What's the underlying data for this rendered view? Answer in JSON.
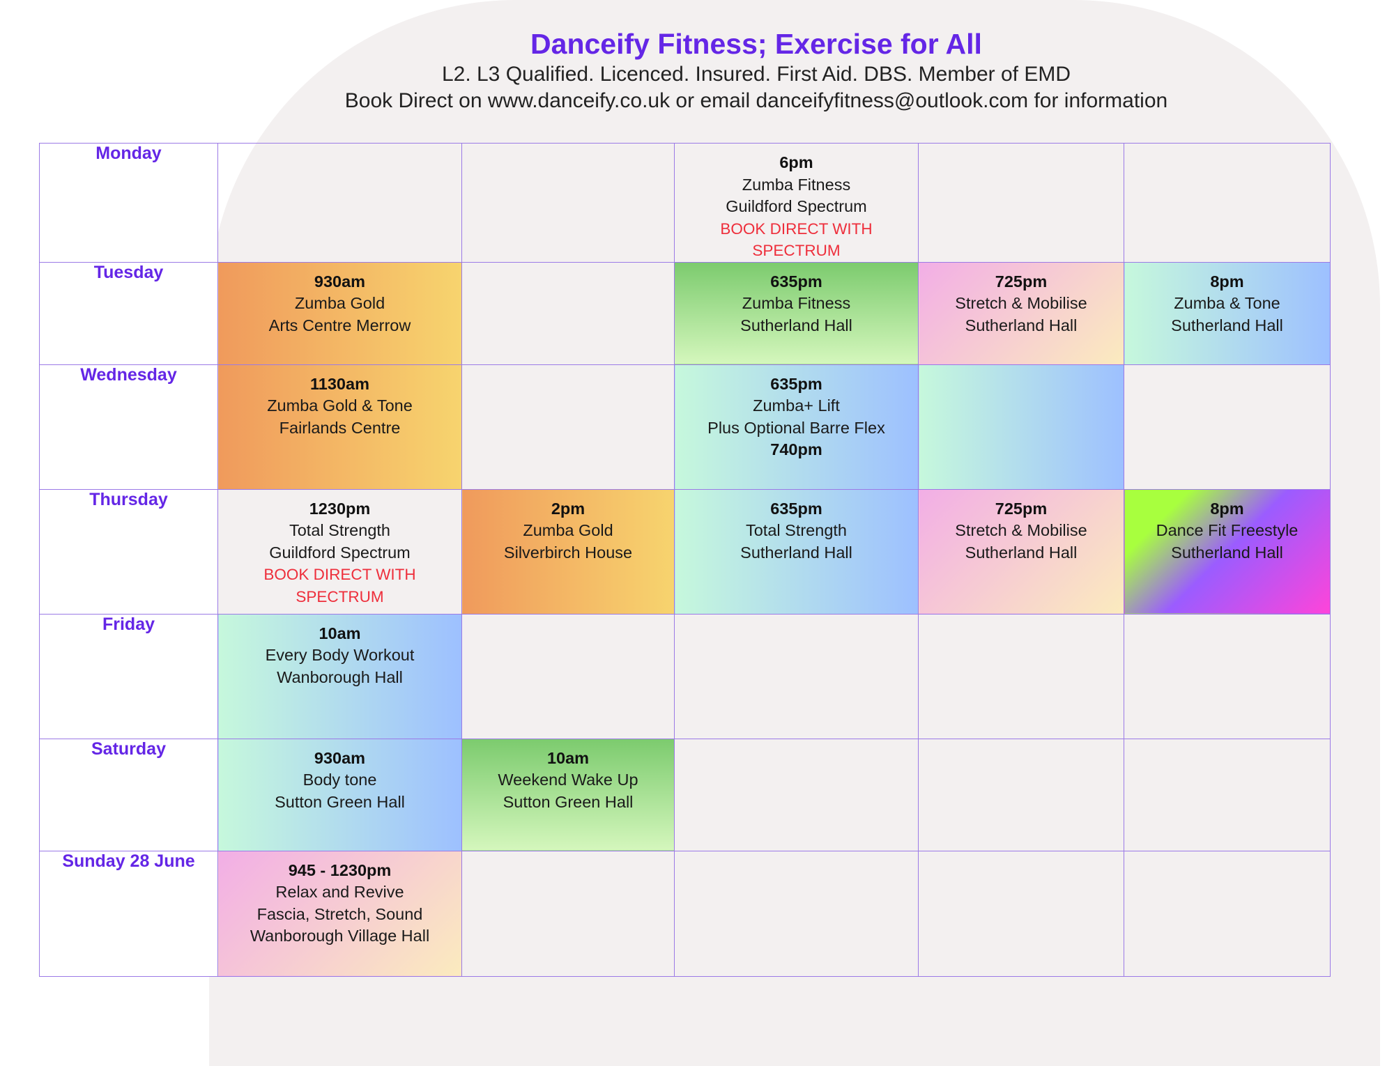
{
  "header": {
    "title": "Danceify Fitness; Exercise for All",
    "line1": "L2. L3 Qualified. Licenced. Insured. First Aid. DBS. Member of EMD",
    "line2": "Book Direct on www.danceify.co.uk or email danceifyfitness@outlook.com for information"
  },
  "colors": {
    "accent": "#6426e6",
    "warning": "#ee2e3b",
    "grid": "#9b7ae6",
    "background_shape": "#f3f0f0"
  },
  "days": [
    {
      "label": "Monday",
      "slots": [
        null,
        null,
        {
          "time": "6pm",
          "lines": [
            "Zumba Fitness",
            "Guildford Spectrum"
          ],
          "warn": "BOOK DIRECT WITH SPECTRUM",
          "style": "none"
        },
        null,
        null
      ]
    },
    {
      "label": "Tuesday",
      "slots": [
        {
          "time": "930am",
          "lines": [
            "Zumba Gold",
            "Arts Centre Merrow"
          ],
          "style": "orange"
        },
        null,
        {
          "time": "635pm",
          "lines": [
            "Zumba Fitness",
            "Sutherland Hall"
          ],
          "style": "green"
        },
        {
          "time": "725pm",
          "lines": [
            "Stretch & Mobilise",
            "Sutherland Hall"
          ],
          "style": "pink"
        },
        {
          "time": "8pm",
          "lines": [
            "Zumba & Tone",
            "Sutherland Hall"
          ],
          "style": "blue"
        }
      ]
    },
    {
      "label": "Wednesday",
      "slots": [
        {
          "time": "1130am",
          "lines": [
            "Zumba Gold & Tone",
            "Fairlands Centre"
          ],
          "style": "orange"
        },
        null,
        {
          "time": "635pm",
          "lines": [
            "Zumba+ Lift",
            "Plus Optional Barre Flex"
          ],
          "time2": "740pm",
          "style": "blue"
        },
        {
          "style": "blue"
        },
        null
      ]
    },
    {
      "label": "Thursday",
      "slots": [
        {
          "time": "1230pm",
          "lines": [
            "Total Strength",
            "Guildford Spectrum"
          ],
          "warn": "BOOK DIRECT WITH SPECTRUM",
          "style": "none"
        },
        {
          "time": "2pm",
          "lines": [
            "Zumba Gold",
            "Silverbirch House"
          ],
          "style": "orange"
        },
        {
          "time": "635pm",
          "lines": [
            "Total Strength",
            "Sutherland Hall"
          ],
          "style": "blue"
        },
        {
          "time": "725pm",
          "lines": [
            "Stretch & Mobilise",
            "Sutherland Hall"
          ],
          "style": "pink"
        },
        {
          "time": "8pm",
          "lines": [
            "Dance Fit Freestyle",
            "Sutherland Hall"
          ],
          "style": "purple"
        }
      ]
    },
    {
      "label": "Friday",
      "slots": [
        {
          "time": "10am",
          "lines": [
            "Every Body Workout",
            "Wanborough Hall"
          ],
          "style": "blue"
        },
        null,
        null,
        null,
        null
      ]
    },
    {
      "label": "Saturday",
      "slots": [
        {
          "time": "930am",
          "lines": [
            "Body tone",
            "Sutton Green Hall"
          ],
          "style": "blue"
        },
        {
          "time": "10am",
          "lines": [
            "Weekend Wake Up",
            "Sutton Green Hall"
          ],
          "style": "green"
        },
        null,
        null,
        null
      ]
    },
    {
      "label": "Sunday 28 June",
      "slots": [
        {
          "time": "945 - 1230pm",
          "lines": [
            "Relax and Revive",
            "Fascia, Stretch, Sound",
            "Wanborough Village Hall"
          ],
          "style": "pink"
        },
        null,
        null,
        null,
        null
      ]
    }
  ]
}
